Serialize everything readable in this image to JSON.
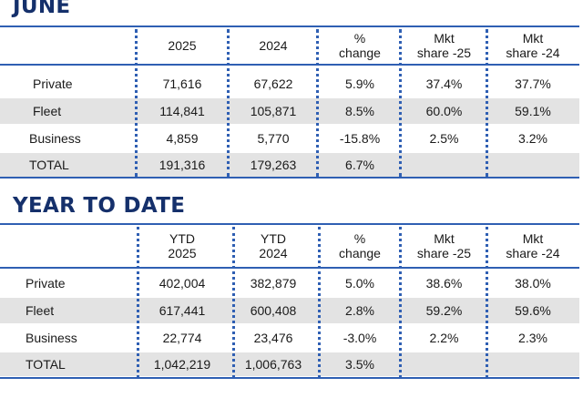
{
  "sections": [
    {
      "title": "JUNE",
      "headers": [
        "2025",
        "2024",
        "%\nchange",
        "Mkt\nshare -25",
        "Mkt\nshare -24"
      ],
      "rows": [
        {
          "label": "Private",
          "values": [
            "71,616",
            "67,622",
            "5.9%",
            "37.4%",
            "37.7%"
          ]
        },
        {
          "label": "Fleet",
          "values": [
            "114,841",
            "105,871",
            "8.5%",
            "60.0%",
            "59.1%"
          ]
        },
        {
          "label": "Business",
          "values": [
            "4,859",
            "5,770",
            "-15.8%",
            "2.5%",
            "3.2%"
          ]
        },
        {
          "label": "TOTAL",
          "values": [
            "191,316",
            "179,263",
            "6.7%",
            "",
            ""
          ]
        }
      ]
    },
    {
      "title": "YEAR TO DATE",
      "headers": [
        "YTD\n2025",
        "YTD\n2024",
        "%\nchange",
        "Mkt\nshare -25",
        "Mkt\nshare -24"
      ],
      "rows": [
        {
          "label": "Private",
          "values": [
            "402,004",
            "382,879",
            "5.0%",
            "38.6%",
            "38.0%"
          ]
        },
        {
          "label": "Fleet",
          "values": [
            "617,441",
            "600,408",
            "2.8%",
            "59.2%",
            "59.6%"
          ]
        },
        {
          "label": "Business",
          "values": [
            "22,774",
            "23,476",
            "-3.0%",
            "2.2%",
            "2.3%"
          ]
        },
        {
          "label": "TOTAL",
          "values": [
            "1,042,219",
            "1,006,763",
            "3.5%",
            "",
            ""
          ]
        }
      ]
    }
  ]
}
